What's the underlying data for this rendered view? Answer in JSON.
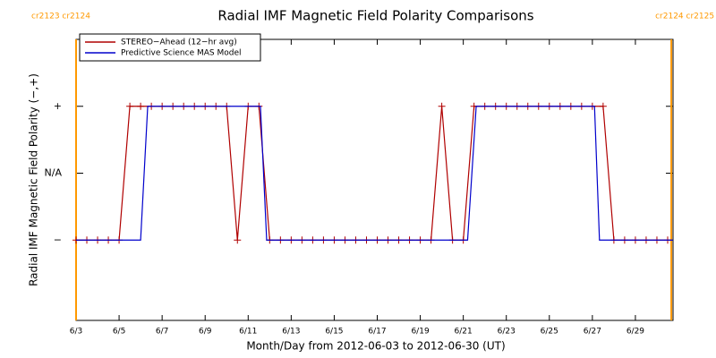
{
  "chart_data": {
    "type": "line",
    "title": "Radial IMF Magnetic Field Polarity Comparisons",
    "x_label": "Month/Day from 2012-06-03 to 2012-06-30 (UT)",
    "y_label": "Radial IMF Magnetic Field Polarity (−,+)",
    "xlim": [
      3,
      30.75
    ],
    "ylim": [
      -2.2,
      2
    ],
    "xticks": [
      {
        "value": 3,
        "label": "6/3"
      },
      {
        "value": 5,
        "label": "6/5"
      },
      {
        "value": 7,
        "label": "6/7"
      },
      {
        "value": 9,
        "label": "6/9"
      },
      {
        "value": 11,
        "label": "6/11"
      },
      {
        "value": 13,
        "label": "6/13"
      },
      {
        "value": 15,
        "label": "6/15"
      },
      {
        "value": 17,
        "label": "6/17"
      },
      {
        "value": 19,
        "label": "6/19"
      },
      {
        "value": 21,
        "label": "6/21"
      },
      {
        "value": 23,
        "label": "6/23"
      },
      {
        "value": 25,
        "label": "6/25"
      },
      {
        "value": 27,
        "label": "6/27"
      },
      {
        "value": 29,
        "label": "6/29"
      }
    ],
    "yticks": [
      {
        "value": -1,
        "label": "−"
      },
      {
        "value": 0,
        "label": "N/A"
      },
      {
        "value": 1,
        "label": "+"
      }
    ],
    "legend": "upper left",
    "boundaries": {
      "color": "#ff9900",
      "items": [
        {
          "x": 3,
          "label": "cr2123 cr2124"
        },
        {
          "x": 30.67,
          "label": "cr2124 cr2125"
        }
      ]
    },
    "series": [
      {
        "name": "STEREO−Ahead (12−hr avg)",
        "color": "#b00000",
        "markers": true,
        "x": [
          3,
          3.5,
          4,
          4.5,
          5,
          5.5,
          6,
          6.5,
          7,
          7.5,
          8,
          8.5,
          9,
          9.5,
          10,
          10.5,
          11,
          11.5,
          12,
          12.5,
          13,
          13.5,
          14,
          14.5,
          15,
          15.5,
          16,
          16.5,
          17,
          17.5,
          18,
          18.5,
          19,
          19.5,
          20,
          20.5,
          21,
          21.5,
          22,
          22.5,
          23,
          23.5,
          24,
          24.5,
          25,
          25.5,
          26,
          26.5,
          27,
          27.5,
          28,
          28.5,
          29,
          29.5,
          30,
          30.5
        ],
        "values": [
          -1,
          -1,
          -1,
          -1,
          -1,
          1,
          1,
          1,
          1,
          1,
          1,
          1,
          1,
          1,
          1,
          -1,
          1,
          1,
          -1,
          -1,
          -1,
          -1,
          -1,
          -1,
          -1,
          -1,
          -1,
          -1,
          -1,
          -1,
          -1,
          -1,
          -1,
          -1,
          1,
          -1,
          -1,
          1,
          1,
          1,
          1,
          1,
          1,
          1,
          1,
          1,
          1,
          1,
          1,
          1,
          -1,
          -1,
          -1,
          -1,
          -1,
          -1
        ]
      },
      {
        "name": "Predictive Science MAS Model",
        "color": "#0000cc",
        "markers": false,
        "x": [
          3,
          6.0,
          6.33,
          11.57,
          11.86,
          21.2,
          21.6,
          27.1,
          27.33,
          30.75
        ],
        "values": [
          -1,
          -1,
          1,
          1,
          -1,
          -1,
          1,
          1,
          -1,
          -1
        ]
      }
    ]
  }
}
